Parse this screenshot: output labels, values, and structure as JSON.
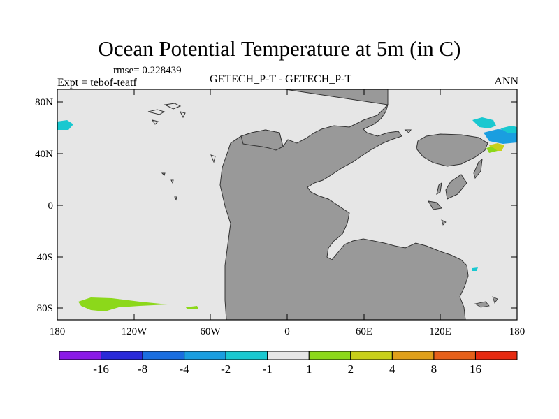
{
  "title": "Ocean Potential Temperature at 5m (in C)",
  "rmse": "rmse= 0.228439",
  "experiment": "Expt = tebof-teatf",
  "subtitle": "GETECH_P-T - GETECH_P-T",
  "season": "ANN",
  "y_axis_labels": [
    "80N",
    "40N",
    "0",
    "40S",
    "80S"
  ],
  "x_axis_labels": [
    "180",
    "120W",
    "60W",
    "0",
    "60E",
    "120E",
    "180"
  ],
  "colorbar": {
    "labels": [
      "-16",
      "-8",
      "-4",
      "-2",
      "-1",
      "1",
      "2",
      "4",
      "8",
      "16"
    ],
    "colors": [
      "#8a1ae6",
      "#2a2ad8",
      "#1a6ee0",
      "#1a9ee0",
      "#19c8d0",
      "#e6e6e6",
      "#8cd81a",
      "#c8d01a",
      "#e0a01a",
      "#e6601a",
      "#e62a10"
    ]
  },
  "colors": {
    "ocean": "#e6e6e6",
    "land": "#999999",
    "positive_anomaly_1_2": "#8cd81a",
    "positive_anomaly_2_4": "#c8d01a",
    "negative_anomaly_2_1": "#19c8d0",
    "negative_anomaly_4_2": "#1a9ee0"
  }
}
